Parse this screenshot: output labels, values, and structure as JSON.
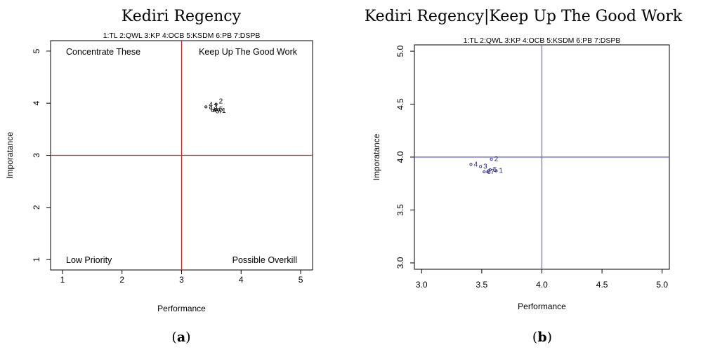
{
  "chart_data": [
    {
      "panel": "a",
      "type": "scatter",
      "title": "Kediri Regency",
      "caption": "(a)",
      "legend_text": "1:TL  2:QWL  3:KP  4:OCB  5:KSDM  6:PB  7:DSPB",
      "xlabel": "Performance",
      "ylabel": "Imporatance",
      "xlim": [
        0.8,
        5.2
      ],
      "ylim": [
        0.8,
        5.2
      ],
      "xticks": [
        "1",
        "2",
        "3",
        "4",
        "5"
      ],
      "yticks": [
        "1",
        "2",
        "3",
        "4",
        "5"
      ],
      "reference_lines": {
        "x": 3,
        "y": 3,
        "color": "#cc2222"
      },
      "quadrant_labels": {
        "top_left": "Concentrate These",
        "top_right": "Keep Up The Good Work",
        "bottom_left": "Low Priority",
        "bottom_right": "Possible Overkill"
      },
      "points": [
        {
          "label": "1",
          "x": 3.62,
          "y": 3.87
        },
        {
          "label": "2",
          "x": 3.58,
          "y": 3.98
        },
        {
          "label": "3",
          "x": 3.49,
          "y": 3.91
        },
        {
          "label": "4",
          "x": 3.41,
          "y": 3.93
        },
        {
          "label": "5",
          "x": 3.57,
          "y": 3.88
        },
        {
          "label": "6",
          "x": 3.52,
          "y": 3.86
        },
        {
          "label": "7",
          "x": 3.55,
          "y": 3.86
        }
      ],
      "point_color": "#000000"
    },
    {
      "panel": "b",
      "type": "scatter",
      "title": "Kediri Regency|Keep Up The Good Work",
      "caption": "(b)",
      "legend_text": "1:TL  2:QWL  3:KP  4:OCB  5:KSDM  6:PB  7:DSPB",
      "xlabel": "Performance",
      "ylabel": "Imporatance",
      "xlim": [
        2.94,
        5.06
      ],
      "ylim": [
        2.94,
        5.06
      ],
      "xticks": [
        "3.0",
        "3.5",
        "4.0",
        "4.5",
        "5.0"
      ],
      "yticks": [
        "3.0",
        "3.5",
        "4.0",
        "4.5",
        "5.0"
      ],
      "reference_lines": {
        "x": 4,
        "y": 4,
        "color": "#6666cc"
      },
      "points": [
        {
          "label": "1",
          "x": 3.62,
          "y": 3.87
        },
        {
          "label": "2",
          "x": 3.58,
          "y": 3.98
        },
        {
          "label": "3",
          "x": 3.49,
          "y": 3.91
        },
        {
          "label": "4",
          "x": 3.41,
          "y": 3.93
        },
        {
          "label": "5",
          "x": 3.57,
          "y": 3.88
        },
        {
          "label": "6",
          "x": 3.52,
          "y": 3.86
        },
        {
          "label": "7",
          "x": 3.55,
          "y": 3.86
        }
      ],
      "point_color": "#2a2a8a"
    }
  ]
}
